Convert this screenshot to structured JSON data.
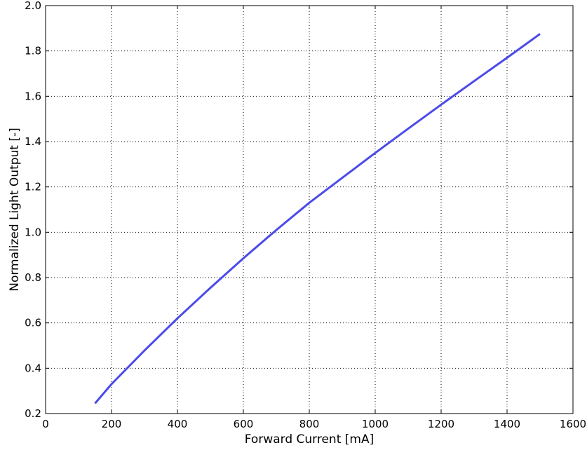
{
  "chart_data": {
    "type": "line",
    "xlabel": "Forward Current [mA]",
    "ylabel": "Normalized Light Output [-]",
    "xlim": [
      0,
      1600
    ],
    "ylim": [
      0.2,
      2.0
    ],
    "x_ticks": [
      "0",
      "200",
      "400",
      "600",
      "800",
      "1000",
      "1200",
      "1400",
      "1600"
    ],
    "y_ticks": [
      "0.2",
      "0.4",
      "0.6",
      "0.8",
      "1.0",
      "1.2",
      "1.4",
      "1.6",
      "1.8",
      "2.0"
    ],
    "grid": true,
    "series": [
      {
        "color": "#4b4bea",
        "x": [
          150,
          200,
          300,
          400,
          500,
          600,
          700,
          800,
          900,
          1000,
          1100,
          1200,
          1300,
          1400,
          1500
        ],
        "y": [
          0.245,
          0.33,
          0.478,
          0.62,
          0.755,
          0.885,
          1.01,
          1.13,
          1.24,
          1.35,
          1.457,
          1.563,
          1.667,
          1.77,
          1.875
        ]
      }
    ]
  }
}
